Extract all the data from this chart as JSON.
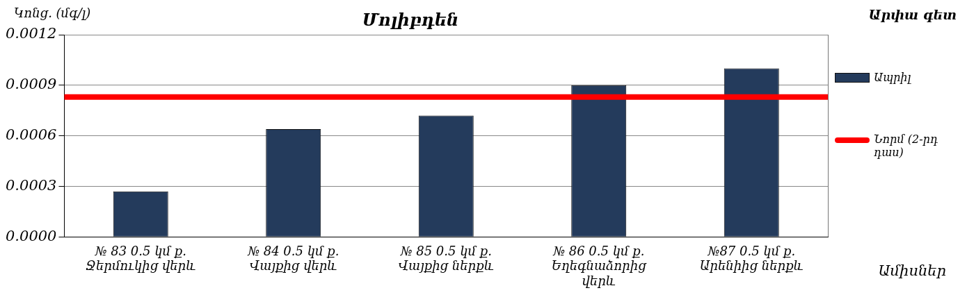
{
  "chart_data": {
    "type": "bar",
    "title": "Մոլիբդեն",
    "ylabel": "Կոնց. (մգ/լ)",
    "xlabel": "Ամիսներ",
    "legend_title": "Արփա գետ",
    "categories": [
      "№ 83 0.5 կմ ք. Ջերմուկից վերև",
      "№ 84 0.5 կմ ք. Վայքից վերև",
      "№ 85 0.5 կմ ք. Վայքից ներքև",
      "№ 86 0.5 կմ ք. Եղեգնաձորից վերև",
      "№87 0.5 կմ ք. Արենիից ներքև"
    ],
    "series": [
      {
        "name": "Ապրիլ",
        "color": "#243b5c",
        "values": [
          0.00027,
          0.00064,
          0.00072,
          0.0009,
          0.001
        ]
      }
    ],
    "ylim": [
      0,
      0.0012
    ],
    "yticks": [
      {
        "value": 0,
        "label": "0.0000"
      },
      0.0003,
      0.0006,
      0.0009,
      0.0012
    ],
    "ref_lines": [
      {
        "axis": "y",
        "value": 0.00083,
        "label": "Նորմ (2-րդ դաս)",
        "color": "#ff0000"
      }
    ],
    "grid": "y",
    "legend": "right"
  }
}
